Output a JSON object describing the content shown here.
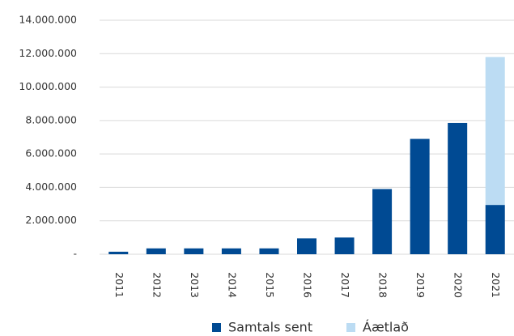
{
  "chart_data": {
    "type": "stacked_bar",
    "categories": [
      "2011",
      "2012",
      "2013",
      "2014",
      "2015",
      "2016",
      "2017",
      "2018",
      "2019",
      "2020",
      "2021"
    ],
    "series": [
      {
        "name": "Samtals sent",
        "color": "#004a93",
        "values": [
          150000,
          350000,
          350000,
          350000,
          350000,
          950000,
          1000000,
          3900000,
          6900000,
          7850000,
          2950000
        ]
      },
      {
        "name": "Áætlað",
        "color": "#bcdcf3",
        "values": [
          0,
          0,
          0,
          0,
          0,
          0,
          0,
          0,
          0,
          0,
          8850000
        ]
      }
    ],
    "ylim": [
      0,
      14000000
    ],
    "yticks": [
      {
        "value": 0,
        "label": "-"
      },
      {
        "value": 2000000,
        "label": "2.000.000"
      },
      {
        "value": 4000000,
        "label": "4.000.000"
      },
      {
        "value": 6000000,
        "label": "6.000.000"
      },
      {
        "value": 8000000,
        "label": "8.000.000"
      },
      {
        "value": 10000000,
        "label": "10.000.000"
      },
      {
        "value": 12000000,
        "label": "12.000.000"
      },
      {
        "value": 14000000,
        "label": "14.000.000"
      }
    ],
    "grid": true,
    "legend": "bottom"
  }
}
